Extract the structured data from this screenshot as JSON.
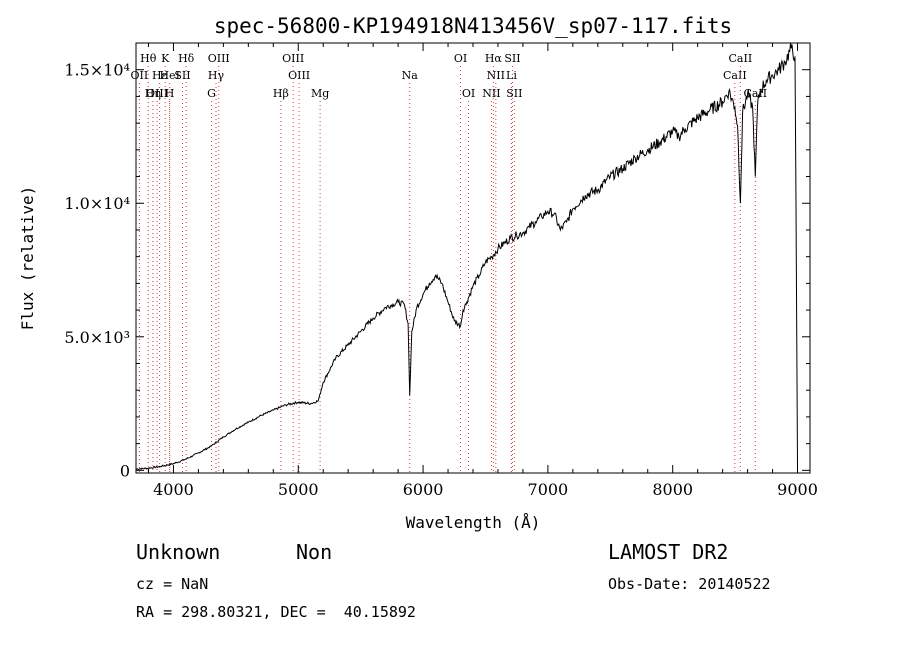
{
  "chart_data": {
    "type": "line",
    "title": "spec-56800-KP194918N413456V_sp07-117.fits",
    "xlabel": "Wavelength (Å)",
    "ylabel": "Flux (relative)",
    "xlim": [
      3700,
      9100
    ],
    "ylim": [
      -100,
      16000
    ],
    "x_ticks": [
      4000,
      5000,
      6000,
      7000,
      8000,
      9000
    ],
    "x_tick_labels": [
      "4000",
      "5000",
      "6000",
      "7000",
      "8000",
      "9000"
    ],
    "y_ticks": [
      0,
      5000,
      10000,
      15000
    ],
    "y_tick_labels": [
      "0",
      "5.0×10³",
      "1.0×10⁴",
      "1.5×10⁴"
    ],
    "grid": false,
    "series": [
      {
        "x": [
          3700,
          3800,
          3900,
          4000,
          4100,
          4200,
          4300,
          4400,
          4500,
          4600,
          4700,
          4800,
          4900,
          5000,
          5100,
          5160,
          5200,
          5300,
          5400,
          5500,
          5600,
          5700,
          5800,
          5850,
          5880,
          5893,
          5910,
          5950,
          6000,
          6050,
          6100,
          6150,
          6200,
          6250,
          6300,
          6320,
          6350,
          6400,
          6450,
          6500,
          6550,
          6600,
          6650,
          6700,
          6750,
          6800,
          6850,
          6900,
          6950,
          7000,
          7050,
          7100,
          7150,
          7200,
          7300,
          7400,
          7500,
          7600,
          7700,
          7800,
          7900,
          8000,
          8050,
          8100,
          8200,
          8300,
          8400,
          8450,
          8498,
          8520,
          8542,
          8560,
          8600,
          8640,
          8662,
          8680,
          8700,
          8750,
          8800,
          8850,
          8900,
          8950,
          8980,
          9000
        ],
        "y": [
          50,
          80,
          150,
          250,
          420,
          650,
          900,
          1250,
          1550,
          1800,
          2050,
          2250,
          2450,
          2550,
          2500,
          2600,
          3300,
          4200,
          4700,
          5200,
          5700,
          6100,
          6300,
          6200,
          5500,
          2800,
          5200,
          6100,
          6600,
          7000,
          7300,
          7000,
          6300,
          5600,
          5400,
          6000,
          6300,
          6900,
          7300,
          7800,
          8000,
          8300,
          8500,
          8700,
          8800,
          8900,
          9100,
          9300,
          9500,
          9700,
          9600,
          9000,
          9300,
          9800,
          10300,
          10500,
          11000,
          11300,
          11700,
          12000,
          12300,
          12700,
          12500,
          12800,
          13200,
          13500,
          13800,
          14200,
          13600,
          12900,
          10000,
          13400,
          14100,
          13600,
          11000,
          13700,
          14200,
          14600,
          14800,
          15000,
          15300,
          15800,
          15500,
          200
        ]
      }
    ],
    "line_markers": [
      {
        "label": "Hθ",
        "x": 3798,
        "row": 0
      },
      {
        "label": "OII",
        "x": 3727,
        "row": 1
      },
      {
        "label": "OIII",
        "x": 3869,
        "row": 2
      },
      {
        "label": "Hε",
        "x": 3889,
        "row": 1
      },
      {
        "label": "K",
        "x": 3934,
        "row": 0
      },
      {
        "label": "HeI",
        "x": 3970,
        "row": 1
      },
      {
        "label": "Hη",
        "x": 3835,
        "row": 2
      },
      {
        "label": "H",
        "x": 3969,
        "row": 2
      },
      {
        "label": "SII",
        "x": 4072,
        "row": 1
      },
      {
        "label": "Hδ",
        "x": 4102,
        "row": 0
      },
      {
        "label": "OIII",
        "x": 4363,
        "row": 0
      },
      {
        "label": "Hγ",
        "x": 4341,
        "row": 1
      },
      {
        "label": "G",
        "x": 4305,
        "row": 2
      },
      {
        "label": "OIII",
        "x": 4959,
        "row": 0
      },
      {
        "label": "OIII",
        "x": 5007,
        "row": 1
      },
      {
        "label": "Hβ",
        "x": 4861,
        "row": 2
      },
      {
        "label": "Mg",
        "x": 5175,
        "row": 2
      },
      {
        "label": "Na",
        "x": 5893,
        "row": 1
      },
      {
        "label": "OI",
        "x": 6300,
        "row": 0
      },
      {
        "label": "OI",
        "x": 6364,
        "row": 2
      },
      {
        "label": "Hα",
        "x": 6563,
        "row": 0
      },
      {
        "label": "SII",
        "x": 6716,
        "row": 0
      },
      {
        "label": "NII",
        "x": 6583,
        "row": 1
      },
      {
        "label": "Li",
        "x": 6708,
        "row": 1
      },
      {
        "label": "NII",
        "x": 6548,
        "row": 2
      },
      {
        "label": "SII",
        "x": 6731,
        "row": 2
      },
      {
        "label": "CaII",
        "x": 8498,
        "row": 1
      },
      {
        "label": "CaII",
        "x": 8542,
        "row": 0
      },
      {
        "label": "CaII",
        "x": 8662,
        "row": 2
      }
    ]
  },
  "info": {
    "object_class": "Unknown",
    "subclass": "Non",
    "survey": "LAMOST DR2",
    "redshift": "cz = NaN",
    "obs_date": "Obs-Date: 20140522",
    "coords": "RA = 298.80321, DEC =  40.15892"
  },
  "colors": {
    "spectrum": "#000000",
    "marker_line": "#d04040",
    "axes": "#000000",
    "background": "#ffffff"
  }
}
